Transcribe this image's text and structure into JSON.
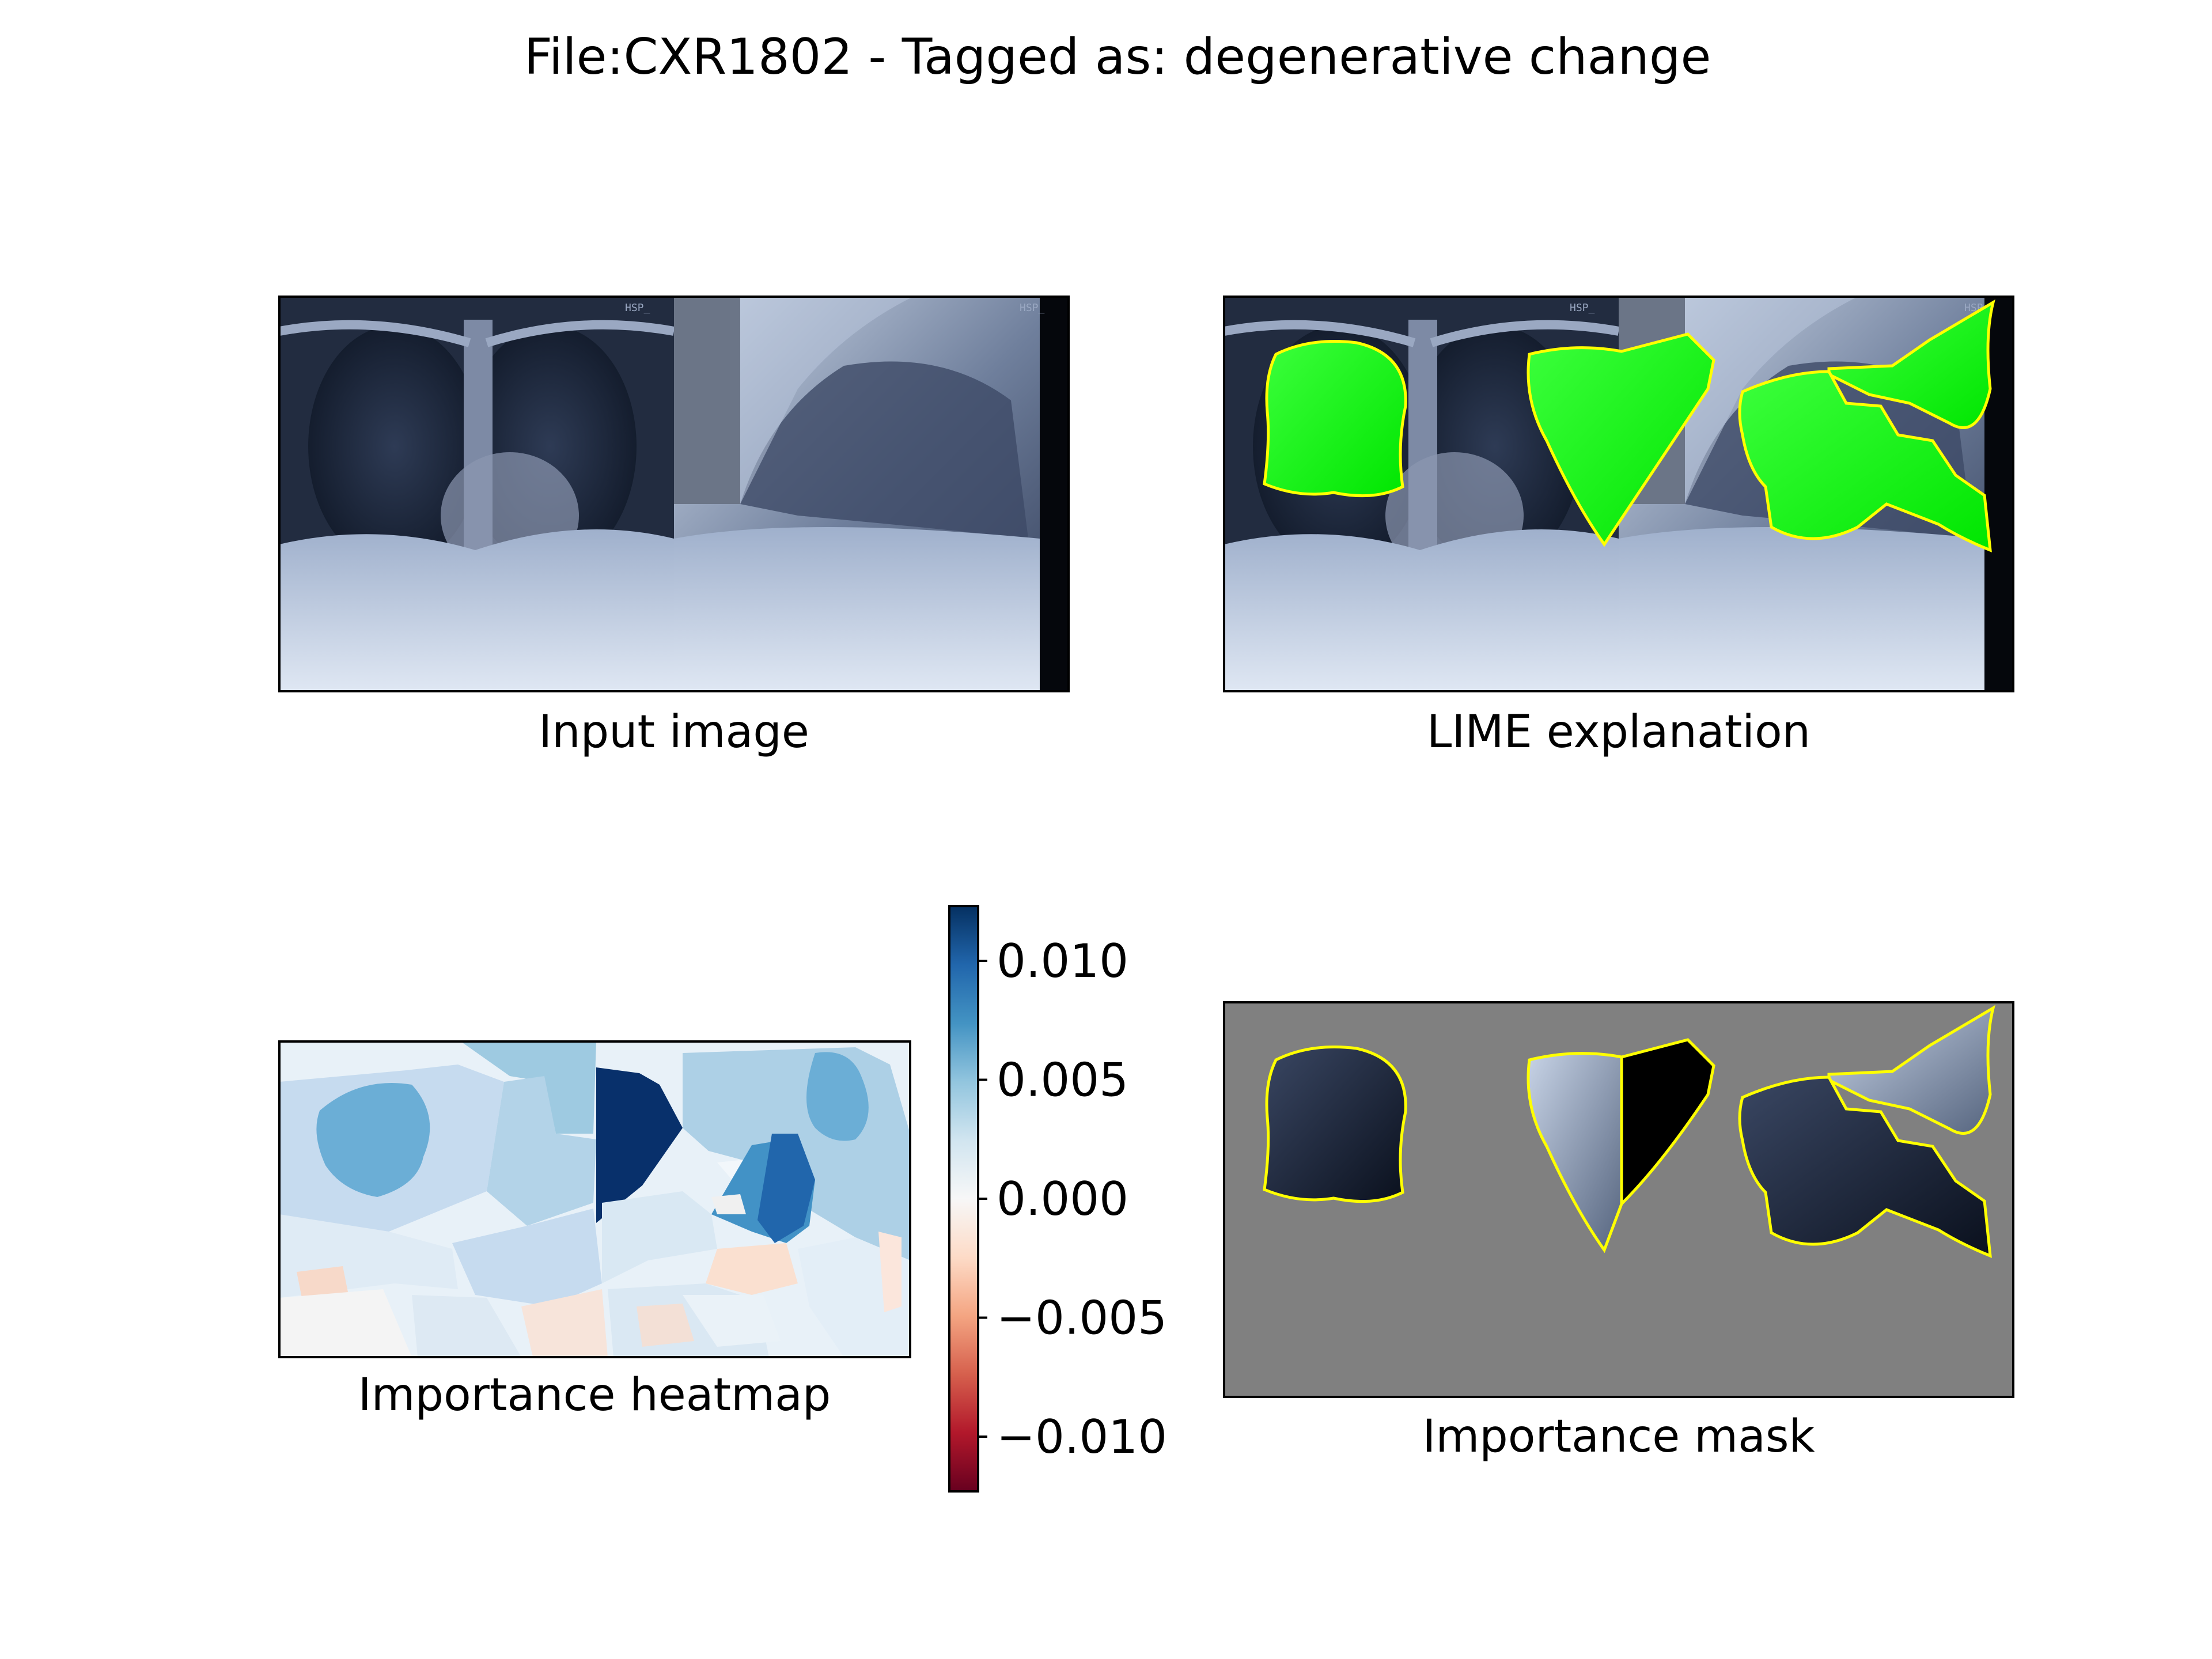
{
  "figure_title": "File:CXR1802 - Tagged as: degenerative change",
  "panels": [
    {
      "id": "input",
      "caption": "Input image"
    },
    {
      "id": "lime",
      "caption": "LIME explanation"
    },
    {
      "id": "heatmap",
      "caption": "Importance heatmap"
    },
    {
      "id": "mask",
      "caption": "Importance mask"
    }
  ],
  "colors": {
    "highlight": "#00ff00",
    "boundary": "#ffff00",
    "mask_background": "#808080",
    "colormap": "RdBu"
  },
  "chart_data": {
    "type": "heatmap",
    "colorbar": {
      "colormap": "RdBu",
      "vmin": -0.0123,
      "vmax": 0.0123,
      "ticks": [
        0.01,
        0.005,
        0.0,
        -0.005,
        -0.01
      ],
      "tick_labels": [
        "0.010",
        "0.005",
        "0.000",
        "−0.005",
        "−0.010"
      ]
    }
  }
}
